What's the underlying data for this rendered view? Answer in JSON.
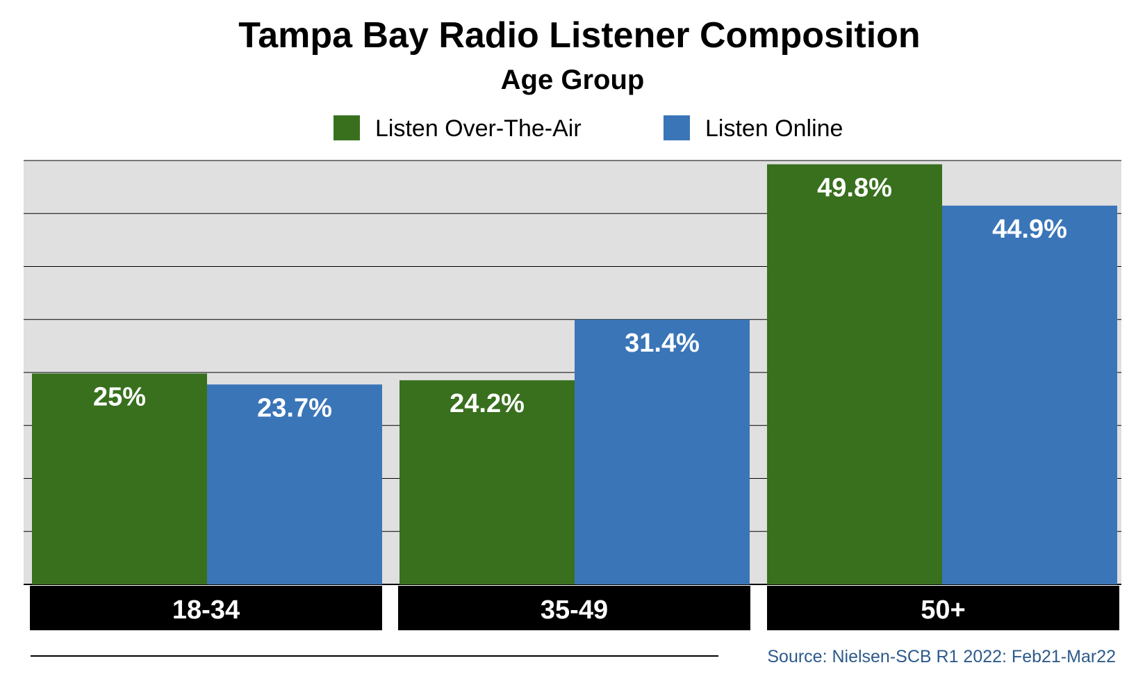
{
  "chart_data": {
    "type": "bar",
    "title": "Tampa Bay Radio Listener Composition",
    "subtitle": "Age Group",
    "categories": [
      "18-34",
      "35-49",
      "50+"
    ],
    "series": [
      {
        "name": "Listen Over-The-Air",
        "color": "#38701e",
        "values": [
          25,
          24.2,
          49.8
        ],
        "labels": [
          "25%",
          "24.2%",
          "49.8%"
        ]
      },
      {
        "name": "Listen Online",
        "color": "#3a75b8",
        "values": [
          23.7,
          31.4,
          44.9
        ],
        "labels": [
          "23.7%",
          "31.4%",
          "44.9%"
        ]
      }
    ],
    "ylim": [
      0,
      50
    ],
    "grid": true,
    "legend": "top-center",
    "plot_background": "#e0e0e0",
    "category_band_color": "#000000",
    "source": "Source: Nielsen-SCB R1 2022: Feb21-Mar22",
    "source_color": "#2d5a8a"
  }
}
